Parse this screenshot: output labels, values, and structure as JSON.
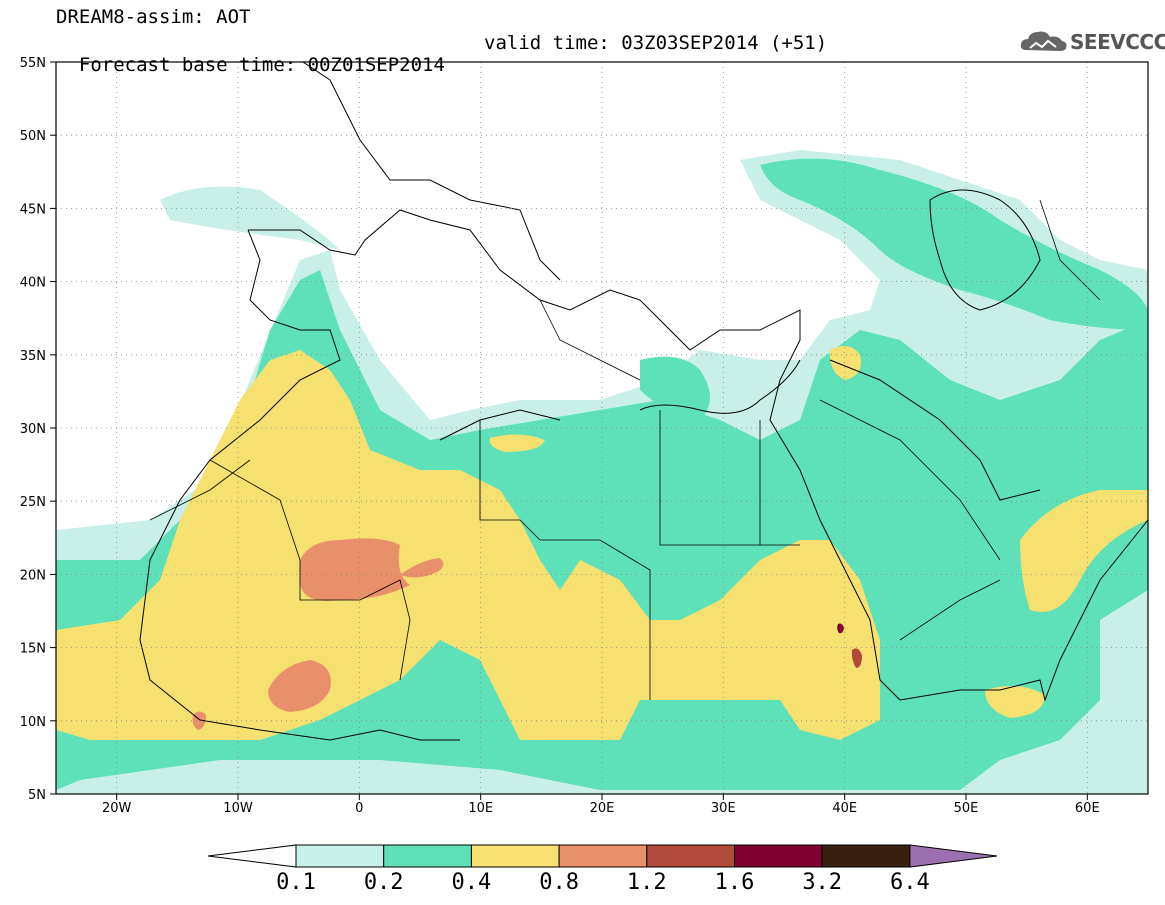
{
  "title": {
    "line1": "DREAM8-assim: AOT",
    "line2_base": "Forecast base time: 00Z01SEP2014",
    "line2_valid": "valid time: 03Z03SEP2014 (+51)"
  },
  "logo": {
    "text": "SEEVCCC",
    "icon": "cloud-icon"
  },
  "map": {
    "lon_range": [
      -25,
      65
    ],
    "lat_range": [
      5,
      55
    ],
    "x_ticks": [
      "20W",
      "10W",
      "0",
      "10E",
      "20E",
      "30E",
      "40E",
      "50E",
      "60E"
    ],
    "y_ticks": [
      "5N",
      "10N",
      "15N",
      "20N",
      "25N",
      "30N",
      "35N",
      "40N",
      "45N",
      "50N",
      "55N"
    ],
    "grid": "dotted"
  },
  "colorbar": {
    "levels": [
      "0.1",
      "0.2",
      "0.4",
      "0.8",
      "1.2",
      "1.6",
      "3.2",
      "6.4"
    ],
    "colors": [
      "#c8f0e8",
      "#5ee0b8",
      "#f5e070",
      "#e8906a",
      "#b04a3a",
      "#800030",
      "#3a2010",
      "#9a70b0"
    ],
    "under_color": "#ffffff"
  },
  "colors": {
    "aot_01": "#c8f0e8",
    "aot_02": "#5ee0b8",
    "aot_04": "#f5e070",
    "aot_08": "#e8906a",
    "aot_12": "#b04a3a",
    "aot_16": "#800030"
  }
}
